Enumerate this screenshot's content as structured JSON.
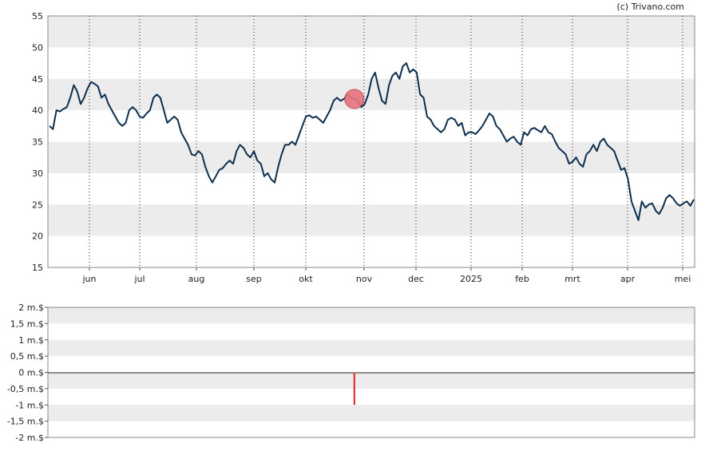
{
  "copyright": "(c) Trivano.com",
  "chart_data": [
    {
      "type": "line",
      "name": "price",
      "ylim": [
        15,
        55
      ],
      "yticks": [
        "55",
        "50",
        "45",
        "40",
        "35",
        "30",
        "25",
        "20",
        "15"
      ],
      "xticks": [
        "jun",
        "jul",
        "aug",
        "sep",
        "okt",
        "nov",
        "dec",
        "2025",
        "feb",
        "mrt",
        "apr",
        "mei"
      ],
      "grid": true,
      "line_color": "#0d2f4f",
      "marker_color": "#e8737e",
      "series": [
        {
          "values": [
            37.5,
            37,
            40,
            39.8,
            40.2,
            40.5,
            42,
            44,
            43,
            41,
            42,
            43.5,
            44.5,
            44.2,
            43.8,
            42,
            42.5,
            41,
            40,
            39,
            38,
            37.5,
            38,
            40,
            40.5,
            40,
            39,
            38.8,
            39.5,
            40,
            42,
            42.5,
            42,
            40,
            38,
            38.5,
            39,
            38.5,
            36.5,
            35.5,
            34.5,
            33,
            32.8,
            33.5,
            33,
            31,
            29.5,
            28.5,
            29.5,
            30.5,
            30.8,
            31.5,
            32,
            31.5,
            33.5,
            34.5,
            34,
            33,
            32.5,
            33.5,
            32,
            31.5,
            29.5,
            30,
            29,
            28.5,
            31,
            33,
            34.5,
            34.5,
            35,
            34.5,
            36,
            37.5,
            39,
            39.2,
            38.8,
            39,
            38.5,
            38,
            39,
            40,
            41.5,
            42,
            41.5,
            41.8,
            42.5,
            42,
            41.8,
            41.5,
            40.5,
            41,
            42.5,
            45,
            46,
            43.5,
            41.5,
            41,
            44,
            45.5,
            46,
            45,
            47,
            47.5,
            46,
            46.5,
            46,
            42.5,
            42,
            39,
            38.5,
            37.5,
            37,
            36.5,
            37,
            38.5,
            38.8,
            38.5,
            37.5,
            38,
            36,
            36.5,
            36.5,
            36.2,
            36.8,
            37.5,
            38.5,
            39.5,
            39,
            37.5,
            37,
            36,
            35,
            35.5,
            35.8,
            35,
            34.5,
            36.5,
            36,
            37,
            37.2,
            36.8,
            36.5,
            37.5,
            36.5,
            36.2,
            35,
            34,
            33.5,
            33,
            31.5,
            31.8,
            32.5,
            31.5,
            31,
            33,
            33.5,
            34.5,
            33.5,
            35,
            35.5,
            34.5,
            34,
            33.5,
            32,
            30.5,
            30.8,
            29,
            25.5,
            24,
            22.5,
            25.5,
            24.5,
            25,
            25.2,
            24,
            23.5,
            24.5,
            26,
            26.5,
            26,
            25.2,
            24.8,
            25.2,
            25.5,
            24.8,
            25.8
          ],
          "marker_index": 88
        }
      ]
    },
    {
      "type": "bar",
      "name": "volume",
      "ylim": [
        -2,
        2
      ],
      "yticks": [
        "2 m.$",
        "1,5 m.$",
        "1 m.$",
        "0,5 m.$",
        "0 m.$",
        "-0,5 m.$",
        "-1 m.$",
        "-1,5 m.$",
        "-2 m.$"
      ],
      "bar_color": "#e0202a",
      "bars": [
        {
          "index": 88,
          "value": -1.0
        }
      ]
    }
  ]
}
